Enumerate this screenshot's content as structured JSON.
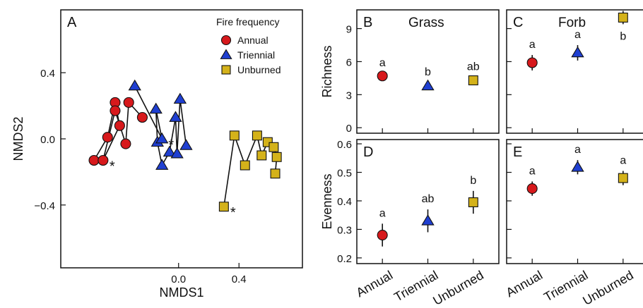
{
  "colors": {
    "annual": "#d7191c",
    "triennial": "#1f3fd1",
    "unburned": "#d4b21a",
    "outline": "#111111"
  },
  "legend": {
    "title": "Fire frequency",
    "items": [
      {
        "label": "Annual",
        "marker": "circle"
      },
      {
        "label": "Triennial",
        "marker": "triangle"
      },
      {
        "label": "Unburned",
        "marker": "square"
      }
    ]
  },
  "chart_data": [
    {
      "panel": "A",
      "type": "scatter",
      "xlabel": "NMDS1",
      "ylabel": "NMDS2",
      "xlim": [
        -0.78,
        0.82
      ],
      "ylim": [
        -0.78,
        0.78
      ],
      "xticks": [
        0.0,
        0.4
      ],
      "xticklabels": [
        "0.0",
        "0.4"
      ],
      "yticks": [
        0.4,
        0.0,
        -0.4
      ],
      "yticklabels": [
        "0.4",
        "0.0",
        "−0.4"
      ],
      "outlier_mark": "*",
      "series": [
        {
          "name": "Annual",
          "points": [
            [
              -0.56,
              -0.13
            ],
            [
              -0.5,
              -0.13
            ],
            [
              -0.47,
              0.01
            ],
            [
              -0.42,
              0.22
            ],
            [
              -0.42,
              0.17
            ],
            [
              -0.39,
              0.08
            ],
            [
              -0.35,
              -0.03
            ],
            [
              -0.33,
              0.22
            ],
            [
              -0.24,
              0.13
            ]
          ],
          "path": [
            0,
            2,
            3,
            5,
            1,
            4,
            6,
            7,
            8
          ],
          "star_index": 1
        },
        {
          "name": "Triennial",
          "points": [
            [
              -0.29,
              0.32
            ],
            [
              -0.15,
              0.18
            ],
            [
              -0.14,
              -0.02
            ],
            [
              -0.11,
              0.0
            ],
            [
              -0.11,
              -0.16
            ],
            [
              -0.06,
              -0.08
            ],
            [
              -0.02,
              0.13
            ],
            [
              -0.01,
              -0.09
            ],
            [
              0.01,
              0.24
            ],
            [
              0.05,
              -0.04
            ]
          ],
          "path": [
            0,
            3,
            1,
            2,
            4,
            5,
            6,
            7,
            8,
            9
          ],
          "star_index": 3
        },
        {
          "name": "Unburned",
          "points": [
            [
              0.3,
              -0.41
            ],
            [
              0.37,
              0.02
            ],
            [
              0.44,
              -0.16
            ],
            [
              0.52,
              0.02
            ],
            [
              0.55,
              -0.1
            ],
            [
              0.59,
              -0.02
            ],
            [
              0.63,
              -0.05
            ],
            [
              0.64,
              -0.21
            ],
            [
              0.65,
              -0.11
            ]
          ],
          "path": [
            0,
            1,
            2,
            3,
            4,
            5,
            6,
            8,
            7
          ],
          "star_index": 0
        }
      ]
    },
    {
      "panel": "B",
      "title": "Grass",
      "type": "scatter",
      "ylabel": "Richness",
      "categories": [
        "Annual",
        "Triennial",
        "Unburned"
      ],
      "ylim": [
        -0.5,
        10.7
      ],
      "yticks": [
        0,
        3,
        6,
        9
      ],
      "values": [
        4.7,
        3.8,
        4.3
      ],
      "errors": [
        0.25,
        0.3,
        0.3
      ],
      "letters": [
        "a",
        "b",
        "ab"
      ]
    },
    {
      "panel": "C",
      "title": "Forb",
      "type": "scatter",
      "categories": [
        "Annual",
        "Triennial",
        "Unburned"
      ],
      "ylim": [
        -0.5,
        10.7
      ],
      "values": [
        5.9,
        6.8,
        10.0
      ],
      "errors": [
        0.7,
        0.7,
        0.6
      ],
      "letters": [
        "a",
        "a",
        "b"
      ]
    },
    {
      "panel": "D",
      "type": "scatter",
      "ylabel": "Evenness",
      "categories": [
        "Annual",
        "Triennial",
        "Unburned"
      ],
      "ylim": [
        0.18,
        0.615
      ],
      "yticks": [
        0.2,
        0.3,
        0.4,
        0.5,
        0.6
      ],
      "yticklabels": [
        "0.2",
        "0.3",
        "0.4",
        "0.5",
        "0.6"
      ],
      "values": [
        0.28,
        0.33,
        0.395
      ],
      "errors": [
        0.04,
        0.04,
        0.04
      ],
      "letters": [
        "a",
        "ab",
        "b"
      ]
    },
    {
      "panel": "E",
      "type": "scatter",
      "categories": [
        "Annual",
        "Triennial",
        "Unburned"
      ],
      "ylim": [
        0.18,
        0.615
      ],
      "values": [
        0.443,
        0.518,
        0.48
      ],
      "errors": [
        0.025,
        0.025,
        0.025
      ],
      "letters": [
        "a",
        "a",
        "a"
      ]
    }
  ]
}
